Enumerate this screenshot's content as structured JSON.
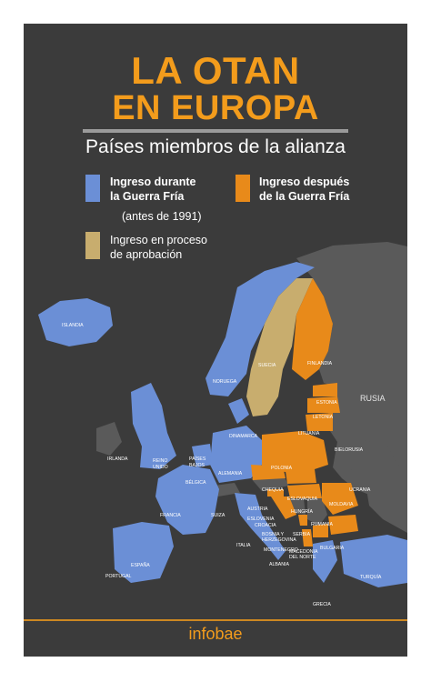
{
  "title": {
    "line1": "LA OTAN",
    "line2": "EN EUROPA"
  },
  "subtitle": "Países miembros de la alianza",
  "colors": {
    "background": "#3b3b3b",
    "accent": "#f39c1c",
    "cold_war": "#6b8fd6",
    "post_cold_war": "#e88a1a",
    "in_process": "#c8ad6e",
    "non_member": "#5a5a5a"
  },
  "legend": {
    "cold_war_line1": "Ingreso durante",
    "cold_war_line2": "la Guerra Fría",
    "cold_war_note": "(antes de 1991)",
    "post_line1": "Ingreso después",
    "post_line2": "de la Guerra Fría",
    "process_line1": "Ingreso en proceso",
    "process_line2": "de aprobación"
  },
  "countries": {
    "islandia": "ISLANDIA",
    "noruega": "NORUEGA",
    "suecia": "SUECIA",
    "finlandia": "FINLANDIA",
    "rusia": "RUSIA",
    "estonia": "ESTONIA",
    "letonia": "LETONIA",
    "lituania": "LITUANIA",
    "dinamarca": "DINAMARCA",
    "irlanda": "IRLANDA",
    "reino_unido_1": "REINO",
    "reino_unido_2": "UNIDO",
    "paises_bajos_1": "PAÍSES",
    "paises_bajos_2": "BAJOS",
    "belgica": "BÉLGICA",
    "alemania": "ALEMANIA",
    "polonia": "POLONIA",
    "bielorrusia": "BIELORUSIA",
    "ucrania": "UCRANIA",
    "chequia": "CHEQUIA",
    "eslovaquia": "ESLOVAQUIA",
    "austria": "AUSTRIA",
    "hungria": "HUNGRÍA",
    "moldavia": "MOLDAVIA",
    "francia": "FRANCIA",
    "suiza": "SUIZA",
    "eslovenia": "ESLOVENIA",
    "croacia": "CROACIA",
    "rumania": "RUMANIA",
    "bosnia_1": "BOSNIA Y",
    "bosnia_2": "HERZEGOVINA",
    "serbia": "SERBIA",
    "italia": "ITALIA",
    "montenegro": "MONTENEGRO",
    "macedonia_1": "MACEDONIA",
    "macedonia_2": "DEL NORTE",
    "bulgaria": "BULGARIA",
    "albania": "ALBANIA",
    "portugal": "PORTUGAL",
    "espana": "ESPAÑA",
    "grecia": "GRECIA",
    "turquia": "TURQUÍA"
  },
  "brand": "infobae"
}
